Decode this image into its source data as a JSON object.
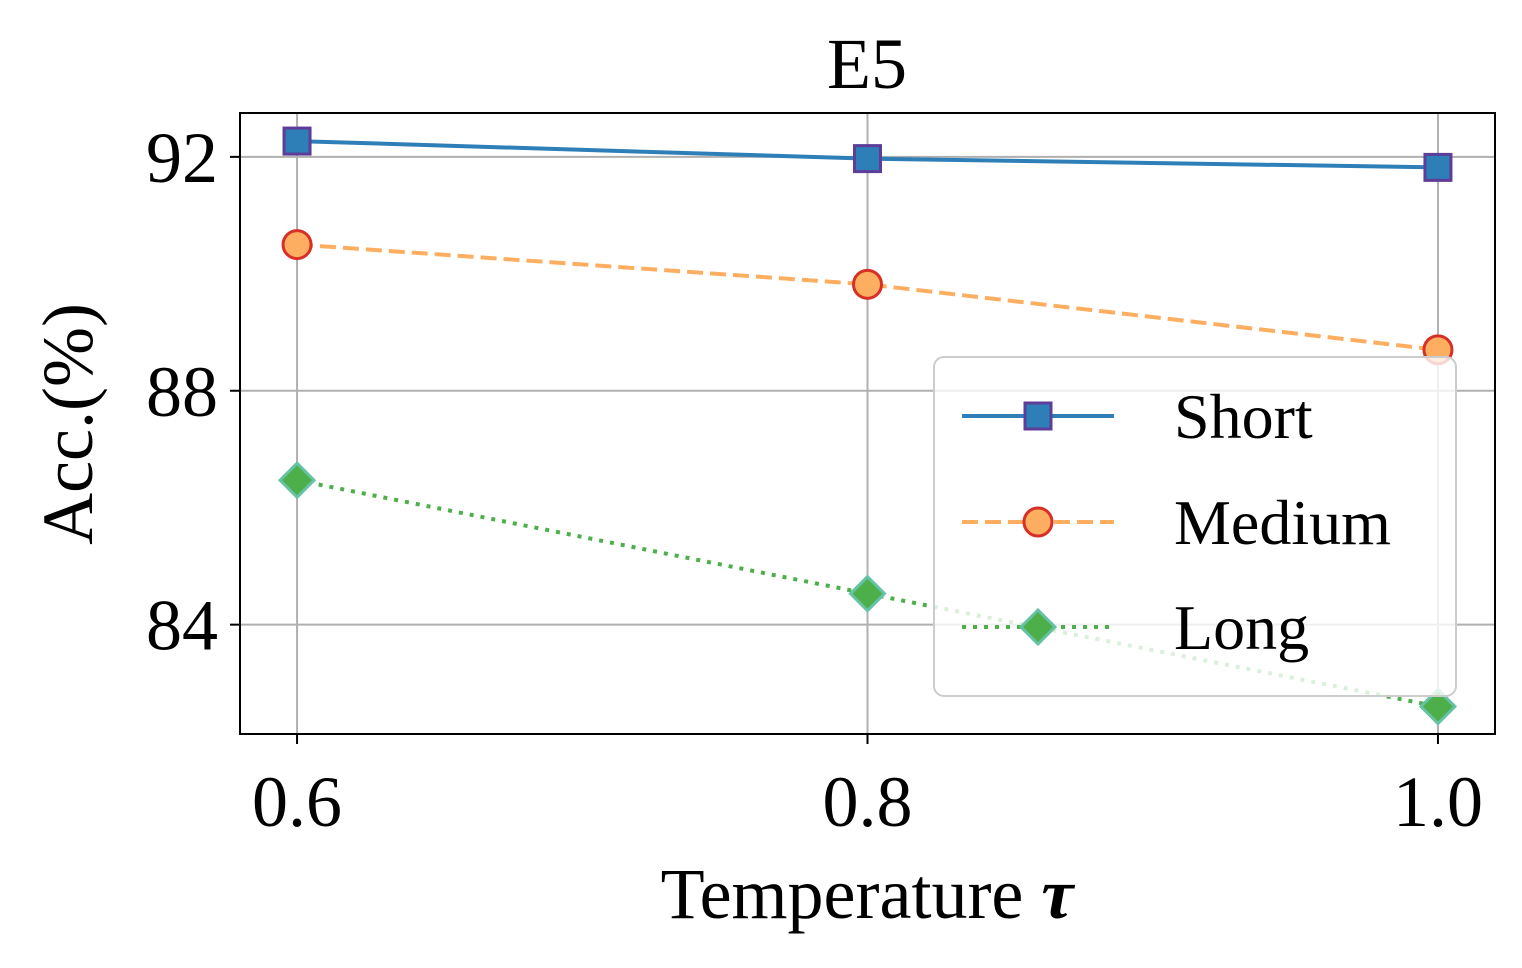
{
  "chart_data": {
    "type": "line",
    "title": "E5",
    "xlabel": "Temperature",
    "xlabel_symbol": "τ",
    "ylabel": "Acc.(%)",
    "x": [
      0.6,
      0.8,
      1.0
    ],
    "x_tick_labels": [
      "0.6",
      "0.8",
      "1.0"
    ],
    "y_ticks": [
      84,
      88,
      92
    ],
    "y_tick_labels": [
      "84",
      "88",
      "92"
    ],
    "xlim": [
      0.58,
      1.02
    ],
    "ylim": [
      82.13,
      92.75
    ],
    "grid": true,
    "legend_position": "lower-right",
    "series": [
      {
        "name": "Short",
        "values": [
          92.27,
          91.97,
          91.82
        ],
        "color": "#2e7eb8",
        "marker": "square",
        "marker_edge": "#5e3d99",
        "linestyle": "solid"
      },
      {
        "name": "Medium",
        "values": [
          90.5,
          89.82,
          88.7
        ],
        "color": "#fdae61",
        "marker": "circle",
        "marker_edge": "#d73027",
        "linestyle": "dashed"
      },
      {
        "name": "Long",
        "values": [
          86.47,
          84.53,
          82.6
        ],
        "color": "#4daf4a",
        "marker": "diamond",
        "marker_edge": "#66c2a5",
        "linestyle": "dotted"
      }
    ]
  }
}
